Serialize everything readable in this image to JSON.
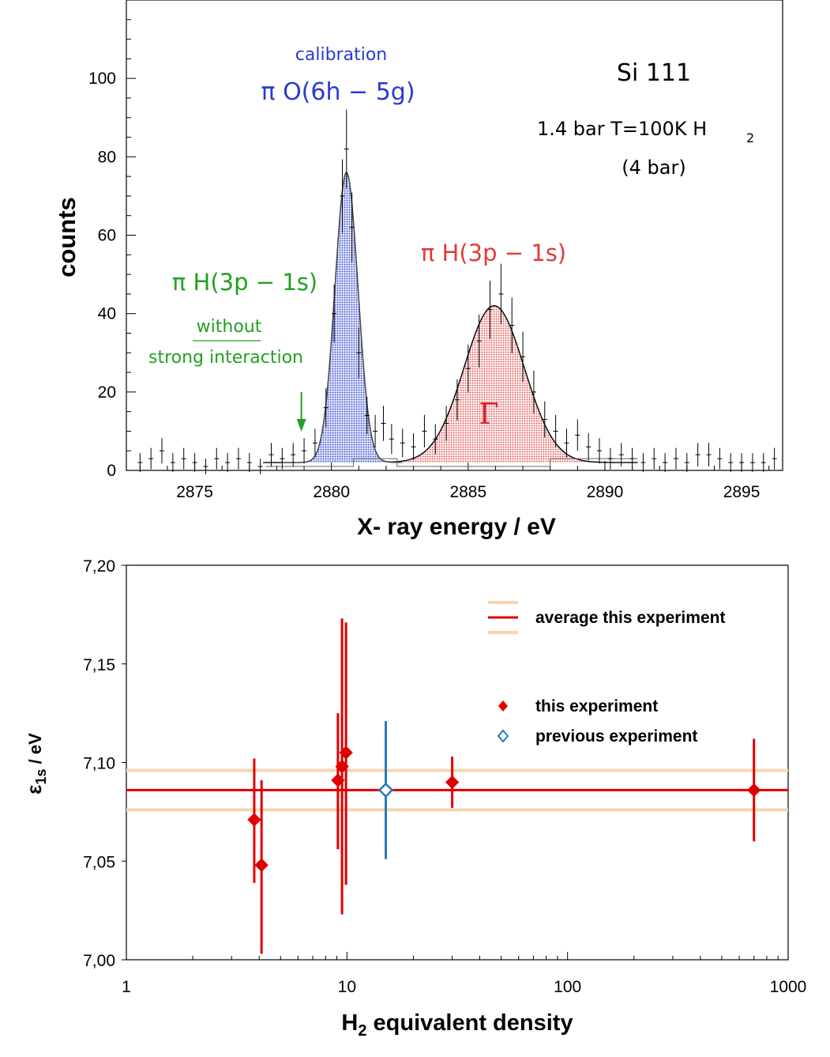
{
  "chart_data": [
    {
      "type": "scatter",
      "panel": "top",
      "xlabel": "X- ray energy / eV",
      "ylabel": "counts",
      "xlim": [
        2872.5,
        2896.5
      ],
      "ylim": [
        0,
        120
      ],
      "x_ticks": [
        "2875",
        "2880",
        "2885",
        "2890",
        "2895"
      ],
      "y_ticks": [
        "0",
        "20",
        "40",
        "60",
        "80",
        "100"
      ],
      "annotations": {
        "crystal": "Si 111",
        "conditions": "1.4 bar T=100K  H",
        "conditions_sub": "2",
        "equiv": "(4 bar)",
        "calibration_label": "calibration",
        "calibration_line": "π O(6h − 5g)",
        "pih_red": "π H(3p − 1s)",
        "pih_green": "π H(3p − 1s)",
        "without": "without",
        "strong": "strong interaction",
        "gamma": "Γ"
      },
      "arrow_energy": 2878.9,
      "series": [
        {
          "name": "π O(6h − 5g)",
          "fit": {
            "center": 2880.55,
            "amplitude": 74,
            "sigma": 0.42
          },
          "color": "#3a4ad0"
        },
        {
          "name": "π H(3p − 1s)",
          "fit": {
            "center": 2885.95,
            "amplitude": 40,
            "sigma": 1.1
          },
          "color": "#e23a3a"
        }
      ],
      "data_points": [
        {
          "x": 2873.0,
          "y": 2
        },
        {
          "x": 2873.4,
          "y": 3
        },
        {
          "x": 2873.8,
          "y": 5
        },
        {
          "x": 2874.2,
          "y": 2
        },
        {
          "x": 2874.6,
          "y": 3
        },
        {
          "x": 2875.0,
          "y": 2
        },
        {
          "x": 2875.4,
          "y": 1
        },
        {
          "x": 2875.8,
          "y": 3
        },
        {
          "x": 2876.2,
          "y": 2
        },
        {
          "x": 2876.6,
          "y": 3
        },
        {
          "x": 2877.0,
          "y": 2
        },
        {
          "x": 2877.4,
          "y": 1
        },
        {
          "x": 2877.8,
          "y": 4
        },
        {
          "x": 2878.2,
          "y": 3
        },
        {
          "x": 2878.6,
          "y": 4
        },
        {
          "x": 2879.0,
          "y": 5
        },
        {
          "x": 2879.4,
          "y": 7
        },
        {
          "x": 2879.8,
          "y": 16
        },
        {
          "x": 2880.1,
          "y": 40
        },
        {
          "x": 2880.4,
          "y": 70
        },
        {
          "x": 2880.55,
          "y": 82
        },
        {
          "x": 2880.75,
          "y": 62
        },
        {
          "x": 2881.0,
          "y": 30
        },
        {
          "x": 2881.3,
          "y": 14
        },
        {
          "x": 2881.6,
          "y": 10
        },
        {
          "x": 2881.9,
          "y": 12
        },
        {
          "x": 2882.2,
          "y": 8
        },
        {
          "x": 2882.6,
          "y": 7
        },
        {
          "x": 2883.0,
          "y": 6
        },
        {
          "x": 2883.4,
          "y": 10
        },
        {
          "x": 2883.8,
          "y": 8
        },
        {
          "x": 2884.2,
          "y": 12
        },
        {
          "x": 2884.6,
          "y": 18
        },
        {
          "x": 2885.0,
          "y": 26
        },
        {
          "x": 2885.4,
          "y": 33
        },
        {
          "x": 2885.8,
          "y": 41
        },
        {
          "x": 2886.2,
          "y": 45
        },
        {
          "x": 2886.6,
          "y": 37
        },
        {
          "x": 2887.0,
          "y": 29
        },
        {
          "x": 2887.4,
          "y": 20
        },
        {
          "x": 2887.8,
          "y": 13
        },
        {
          "x": 2888.2,
          "y": 10
        },
        {
          "x": 2888.6,
          "y": 7
        },
        {
          "x": 2889.0,
          "y": 9
        },
        {
          "x": 2889.4,
          "y": 6
        },
        {
          "x": 2889.8,
          "y": 5
        },
        {
          "x": 2890.2,
          "y": 3
        },
        {
          "x": 2890.6,
          "y": 4
        },
        {
          "x": 2891.0,
          "y": 3
        },
        {
          "x": 2891.4,
          "y": 2
        },
        {
          "x": 2891.8,
          "y": 3
        },
        {
          "x": 2892.2,
          "y": 2
        },
        {
          "x": 2892.6,
          "y": 3
        },
        {
          "x": 2893.0,
          "y": 2
        },
        {
          "x": 2893.4,
          "y": 4
        },
        {
          "x": 2893.8,
          "y": 4
        },
        {
          "x": 2894.2,
          "y": 3
        },
        {
          "x": 2894.6,
          "y": 2
        },
        {
          "x": 2895.0,
          "y": 2
        },
        {
          "x": 2895.4,
          "y": 2
        },
        {
          "x": 2895.8,
          "y": 2
        },
        {
          "x": 2896.2,
          "y": 3
        }
      ]
    },
    {
      "type": "scatter",
      "panel": "bottom",
      "xlabel": "H",
      "xlabel_sub": "2",
      "xlabel_rest": " equivalent density",
      "ylabel": "ε",
      "ylabel_sub": "1s",
      "ylabel_rest": " / eV",
      "xscale": "log",
      "xlim": [
        1,
        1000
      ],
      "ylim": [
        7.0,
        7.2
      ],
      "x_ticks": [
        "1",
        "10",
        "100",
        "1000"
      ],
      "y_ticks": [
        "7,00",
        "7,05",
        "7,10",
        "7,15",
        "7,20"
      ],
      "average": {
        "value": 7.086,
        "band": [
          7.076,
          7.096
        ]
      },
      "legend": {
        "average": "average this experiment",
        "this": "this experiment",
        "previous": "previous experiment"
      },
      "series": [
        {
          "name": "this experiment",
          "color": "#e00000",
          "points": [
            {
              "x": 3.8,
              "y": 7.071,
              "err_low": 7.039,
              "err_high": 7.102
            },
            {
              "x": 4.1,
              "y": 7.048,
              "err_low": 7.003,
              "err_high": 7.091
            },
            {
              "x": 9.1,
              "y": 7.091,
              "err_low": 7.056,
              "err_high": 7.125
            },
            {
              "x": 9.5,
              "y": 7.098,
              "err_low": 7.023,
              "err_high": 7.173
            },
            {
              "x": 9.9,
              "y": 7.105,
              "err_low": 7.038,
              "err_high": 7.171
            },
            {
              "x": 30,
              "y": 7.09,
              "err_low": 7.077,
              "err_high": 7.103
            },
            {
              "x": 700,
              "y": 7.086,
              "err_low": 7.06,
              "err_high": 7.112
            }
          ]
        },
        {
          "name": "previous experiment",
          "color": "#2a7ab8",
          "points": [
            {
              "x": 15,
              "y": 7.086,
              "err_low": 7.051,
              "err_high": 7.121
            }
          ]
        }
      ]
    }
  ]
}
